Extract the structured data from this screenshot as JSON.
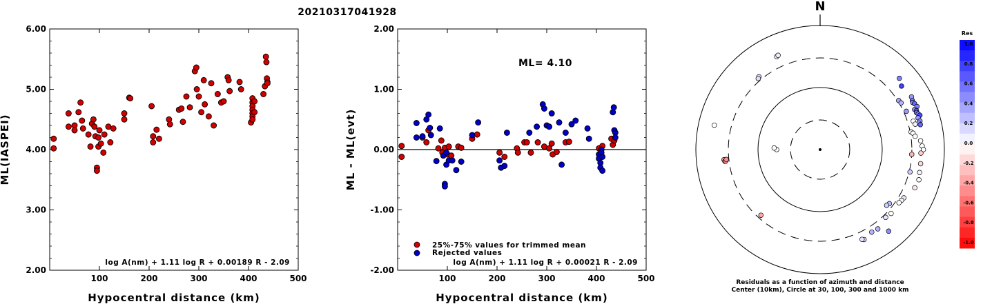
{
  "title": "20210317041928",
  "colors": {
    "red": "#d40000",
    "blue": "#0000cc",
    "frame": "#000000"
  },
  "chart_data": [
    {
      "type": "scatter",
      "id": "left",
      "ylabel": "ML(IASPEI)",
      "xlabel": "Hypocentral distance (km)",
      "xlim": [
        0,
        500
      ],
      "ylim": [
        2,
        6
      ],
      "xticks": [
        "100",
        "200",
        "300",
        "400",
        "500"
      ],
      "yticks": [
        "2.00",
        "3.00",
        "4.00",
        "5.00",
        "6.00"
      ],
      "formula": "log A(nm) + 1.11 log R + 0.00189 R - 2.09",
      "series": [
        {
          "color": "red",
          "points": [
            [
              8,
              4.18
            ],
            [
              8,
              4.02
            ],
            [
              38,
              4.6
            ],
            [
              38,
              4.38
            ],
            [
              50,
              4.4
            ],
            [
              50,
              4.32
            ],
            [
              58,
              4.62
            ],
            [
              62,
              4.78
            ],
            [
              65,
              4.48
            ],
            [
              67,
              4.35
            ],
            [
              78,
              4.25
            ],
            [
              82,
              4.05
            ],
            [
              85,
              4.43
            ],
            [
              88,
              4.5
            ],
            [
              90,
              4.38
            ],
            [
              92,
              4.22
            ],
            [
              95,
              3.7
            ],
            [
              95,
              3.65
            ],
            [
              98,
              4.05
            ],
            [
              98,
              4.2
            ],
            [
              100,
              4.32
            ],
            [
              103,
              4.1
            ],
            [
              108,
              3.95
            ],
            [
              110,
              4.25
            ],
            [
              118,
              4.38
            ],
            [
              122,
              4.12
            ],
            [
              128,
              4.35
            ],
            [
              150,
              4.6
            ],
            [
              150,
              4.5
            ],
            [
              160,
              4.86
            ],
            [
              162,
              4.85
            ],
            [
              205,
              4.72
            ],
            [
              208,
              4.22
            ],
            [
              208,
              4.12
            ],
            [
              215,
              4.33
            ],
            [
              220,
              4.18
            ],
            [
              240,
              4.5
            ],
            [
              242,
              4.42
            ],
            [
              260,
              4.66
            ],
            [
              265,
              4.68
            ],
            [
              268,
              4.46
            ],
            [
              275,
              4.88
            ],
            [
              282,
              4.7
            ],
            [
              292,
              5.3
            ],
            [
              295,
              5.36
            ],
            [
              296,
              5.0
            ],
            [
              300,
              4.88
            ],
            [
              305,
              4.62
            ],
            [
              310,
              5.15
            ],
            [
              312,
              4.75
            ],
            [
              320,
              4.55
            ],
            [
              325,
              5.1
            ],
            [
              330,
              4.4
            ],
            [
              338,
              4.92
            ],
            [
              345,
              4.78
            ],
            [
              350,
              4.8
            ],
            [
              358,
              5.2
            ],
            [
              360,
              5.15
            ],
            [
              362,
              4.97
            ],
            [
              382,
              5.12
            ],
            [
              385,
              5.0
            ],
            [
              405,
              4.45
            ],
            [
              408,
              4.85
            ],
            [
              408,
              4.78
            ],
            [
              408,
              4.72
            ],
            [
              408,
              4.66
            ],
            [
              408,
              4.6
            ],
            [
              408,
              4.55
            ],
            [
              408,
              4.5
            ],
            [
              412,
              4.8
            ],
            [
              412,
              4.62
            ],
            [
              430,
              4.92
            ],
            [
              433,
              5.05
            ],
            [
              435,
              5.54
            ],
            [
              436,
              5.45
            ],
            [
              437,
              5.18
            ],
            [
              438,
              5.12
            ],
            [
              438,
              5.1
            ]
          ]
        }
      ]
    },
    {
      "type": "scatter",
      "id": "middle",
      "ylabel": "ML - ML(evt)",
      "xlabel": "Hypocentral distance (km)",
      "xlim": [
        0,
        500
      ],
      "ylim": [
        -2,
        2
      ],
      "xticks": [
        "100",
        "200",
        "300",
        "400",
        "500"
      ],
      "yticks": [
        "-2.00",
        "-1.00",
        "0.00",
        "1.00",
        "2.00"
      ],
      "annotation": "ML= 4.10",
      "legend": [
        "25%-75% values for trimmed mean",
        "Rejected values"
      ],
      "formula": "log A(nm) + 1.11 log R + 0.00021 R - 2.09",
      "series": [
        {
          "color": "red",
          "points": [
            [
              8,
              -0.12
            ],
            [
              8,
              0.06
            ],
            [
              50,
              0.2
            ],
            [
              58,
              0.12
            ],
            [
              62,
              0.32
            ],
            [
              82,
              0.02
            ],
            [
              88,
              0.15
            ],
            [
              90,
              -0.05
            ],
            [
              95,
              0.03
            ],
            [
              100,
              -0.08
            ],
            [
              103,
              0.05
            ],
            [
              108,
              -0.1
            ],
            [
              122,
              0.05
            ],
            [
              128,
              0.03
            ],
            [
              150,
              0.18
            ],
            [
              160,
              0.25
            ],
            [
              205,
              -0.05
            ],
            [
              215,
              -0.12
            ],
            [
              240,
              0.02
            ],
            [
              242,
              -0.05
            ],
            [
              255,
              0.12
            ],
            [
              260,
              0.12
            ],
            [
              268,
              -0.05
            ],
            [
              282,
              0.12
            ],
            [
              295,
              0.05
            ],
            [
              305,
              0.02
            ],
            [
              310,
              0.1
            ],
            [
              312,
              -0.08
            ],
            [
              320,
              -0.04
            ],
            [
              338,
              0.12
            ],
            [
              345,
              0.13
            ],
            [
              405,
              0.02
            ],
            [
              408,
              -0.1
            ],
            [
              412,
              0.06
            ],
            [
              430,
              0.18
            ],
            [
              433,
              0.08
            ],
            [
              436,
              0.15
            ]
          ]
        },
        {
          "color": "blue",
          "points": [
            [
              38,
              0.44
            ],
            [
              38,
              0.2
            ],
            [
              50,
              0.22
            ],
            [
              58,
              0.5
            ],
            [
              62,
              0.58
            ],
            [
              65,
              0.36
            ],
            [
              67,
              0.24
            ],
            [
              78,
              -0.19
            ],
            [
              85,
              0.35
            ],
            [
              92,
              -0.1
            ],
            [
              95,
              -0.57
            ],
            [
              95,
              -0.61
            ],
            [
              98,
              -0.05
            ],
            [
              98,
              -0.25
            ],
            [
              103,
              -0.18
            ],
            [
              110,
              -0.18
            ],
            [
              118,
              -0.34
            ],
            [
              128,
              -0.2
            ],
            [
              150,
              0.24
            ],
            [
              162,
              0.45
            ],
            [
              205,
              -0.18
            ],
            [
              208,
              -0.3
            ],
            [
              215,
              -0.27
            ],
            [
              220,
              0.28
            ],
            [
              265,
              0.28
            ],
            [
              280,
              0.38
            ],
            [
              292,
              0.75
            ],
            [
              295,
              0.68
            ],
            [
              300,
              0.4
            ],
            [
              305,
              0.38
            ],
            [
              310,
              0.6
            ],
            [
              325,
              0.45
            ],
            [
              330,
              -0.25
            ],
            [
              338,
              0.28
            ],
            [
              350,
              0.42
            ],
            [
              358,
              0.48
            ],
            [
              382,
              0.35
            ],
            [
              385,
              0.18
            ],
            [
              405,
              -0.08
            ],
            [
              405,
              -0.15
            ],
            [
              408,
              -0.22
            ],
            [
              408,
              -0.3
            ],
            [
              410,
              0.0
            ],
            [
              410,
              -0.05
            ],
            [
              412,
              -0.12
            ],
            [
              412,
              -0.35
            ],
            [
              433,
              0.62
            ],
            [
              435,
              0.7
            ],
            [
              436,
              0.32
            ],
            [
              438,
              0.28
            ],
            [
              438,
              0.2
            ]
          ]
        }
      ]
    },
    {
      "type": "polar",
      "id": "right",
      "north_label": "N",
      "caption_lines": [
        "Residuals as a function of azimuth and distance",
        "Center (10km), Circle at 30, 100, 300 and 1000 km"
      ],
      "rings_km": [
        30,
        100,
        300,
        1000
      ],
      "colorbar": {
        "title": "Res",
        "labels": [
          "1.0",
          "0.8",
          "0.6",
          "0.4",
          "0.2",
          "0.0",
          "-0.2",
          "-0.4",
          "-0.6",
          "-0.8",
          "-1.0"
        ]
      },
      "points_deg_km_res": [
        [
          335,
          450,
          0.05
        ],
        [
          336,
          460,
          0.05
        ],
        [
          320,
          340,
          0.15
        ],
        [
          319,
          330,
          0.12
        ],
        [
          283,
          560,
          0.0
        ],
        [
          264,
          360,
          -0.3
        ],
        [
          263,
          350,
          -0.4
        ],
        [
          263,
          340,
          -0.5
        ],
        [
          264,
          330,
          -0.45
        ],
        [
          270,
          50,
          0.0
        ],
        [
          272,
          55,
          0.0
        ],
        [
          222,
          265,
          -0.35
        ],
        [
          48,
          520,
          0.5
        ],
        [
          52,
          460,
          0.75
        ],
        [
          60,
          500,
          0.4
        ],
        [
          62,
          480,
          0.55
        ],
        [
          63,
          470,
          0.45
        ],
        [
          64,
          490,
          0.6
        ],
        [
          66,
          510,
          0.5
        ],
        [
          67,
          450,
          0.45
        ],
        [
          68,
          470,
          0.65
        ],
        [
          69,
          460,
          0.55
        ],
        [
          70,
          480,
          0.5
        ],
        [
          71,
          500,
          0.7
        ],
        [
          72,
          455,
          0.4
        ],
        [
          74,
          470,
          0.45
        ],
        [
          75,
          440,
          0.35
        ],
        [
          76,
          460,
          0.6
        ],
        [
          58,
          310,
          0.35
        ],
        [
          60,
          320,
          0.3
        ],
        [
          66,
          330,
          0.4
        ],
        [
          73,
          370,
          0.0
        ],
        [
          75,
          385,
          0.05
        ],
        [
          79,
          310,
          -0.05
        ],
        [
          80,
          330,
          0.0
        ],
        [
          82,
          350,
          0.02
        ],
        [
          85,
          420,
          0.0
        ],
        [
          88,
          440,
          0.0
        ],
        [
          90,
          460,
          0.0
        ],
        [
          92,
          420,
          -0.2
        ],
        [
          93,
          300,
          -0.3
        ],
        [
          98,
          430,
          -0.15
        ],
        [
          103,
          440,
          0.05
        ],
        [
          104,
          310,
          0.2
        ],
        [
          107,
          460,
          0.0
        ],
        [
          112,
          440,
          -0.1
        ],
        [
          120,
          360,
          0.1
        ],
        [
          122,
          350,
          -0.05
        ],
        [
          124,
          340,
          0.0
        ],
        [
          128,
          260,
          0.25
        ],
        [
          130,
          250,
          0.2
        ],
        [
          132,
          345,
          0.0
        ],
        [
          136,
          330,
          0.1
        ],
        [
          140,
          520,
          0.45
        ],
        [
          144,
          380,
          0.3
        ],
        [
          148,
          370,
          0.3
        ],
        [
          154,
          410,
          0.15
        ],
        [
          155,
          395,
          0.1
        ]
      ]
    }
  ]
}
